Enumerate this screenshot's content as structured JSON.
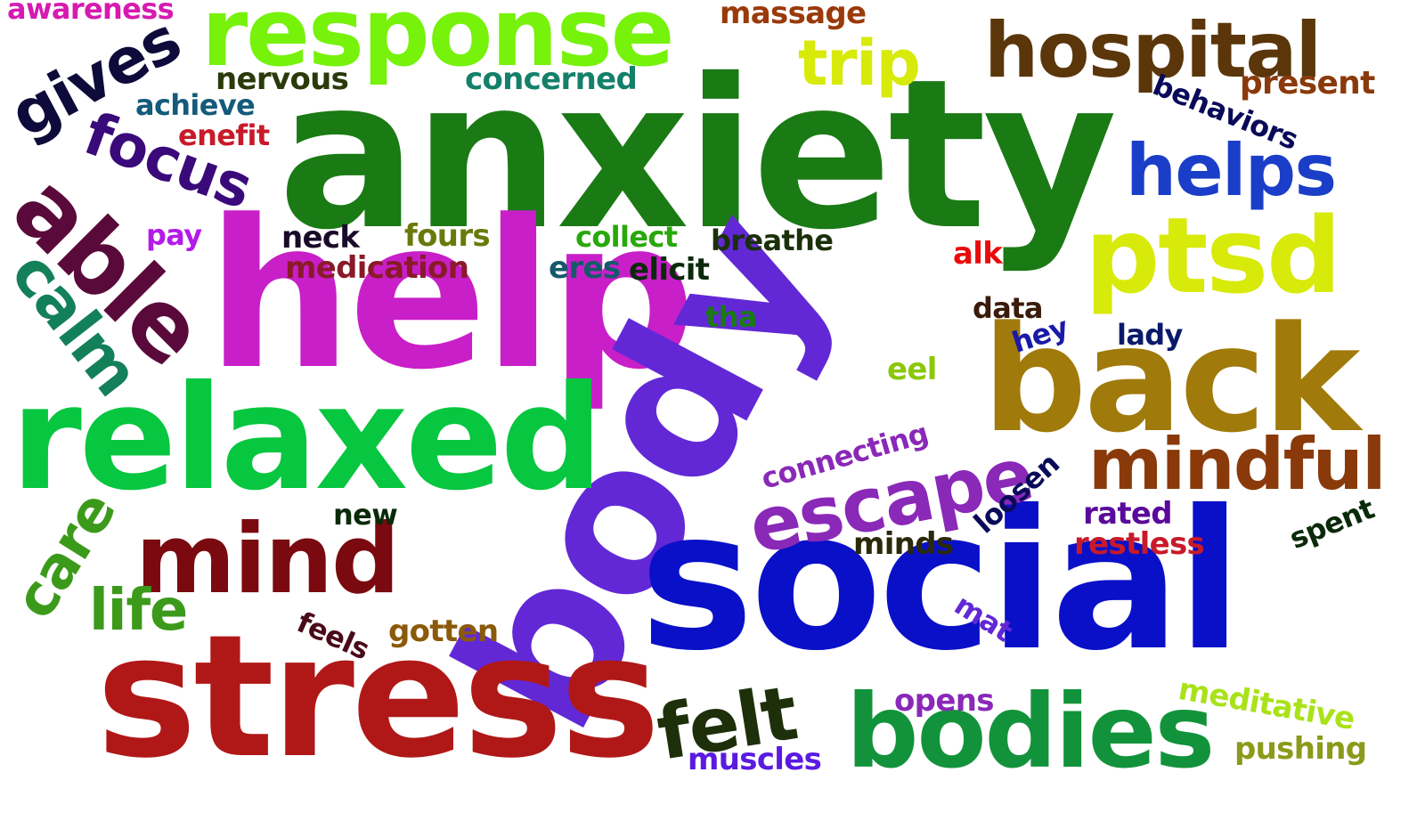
{
  "words": [
    {
      "text": "anxiety",
      "color": "#1a7a14"
    },
    {
      "text": "help",
      "color": "#c81fc8"
    },
    {
      "text": "body",
      "color": "#6228d6"
    },
    {
      "text": "social",
      "color": "#0a10c8"
    },
    {
      "text": "stress",
      "color": "#b01818"
    },
    {
      "text": "relaxed",
      "color": "#07c640"
    },
    {
      "text": "back",
      "color": "#a07a0a"
    },
    {
      "text": "response",
      "color": "#76f20b"
    },
    {
      "text": "bodies",
      "color": "#12933b"
    },
    {
      "text": "ptsd",
      "color": "#d8ea0a"
    },
    {
      "text": "mind",
      "color": "#7a0a10"
    },
    {
      "text": "able",
      "color": "#5a0a3a"
    },
    {
      "text": "hospital",
      "color": "#5a360a"
    },
    {
      "text": "escape",
      "color": "#8a28b8"
    },
    {
      "text": "mindful",
      "color": "#8a3a0a"
    },
    {
      "text": "helps",
      "color": "#1a3ec8"
    },
    {
      "text": "felt",
      "color": "#1e300a"
    },
    {
      "text": "gives",
      "color": "#0e0a3a"
    },
    {
      "text": "focus",
      "color": "#3a0a7a"
    },
    {
      "text": "trip",
      "color": "#d8ea0a"
    },
    {
      "text": "calm",
      "color": "#14805a"
    },
    {
      "text": "care",
      "color": "#3c9a1a"
    },
    {
      "text": "life",
      "color": "#3c9a1a"
    },
    {
      "text": "awareness",
      "color": "#d61ab0"
    },
    {
      "text": "massage",
      "color": "#9a3a0a"
    },
    {
      "text": "nervous",
      "color": "#2a3a0a"
    },
    {
      "text": "concerned",
      "color": "#14806a"
    },
    {
      "text": "present",
      "color": "#8a3a0a"
    },
    {
      "text": "behaviors",
      "color": "#0a0a5a"
    },
    {
      "text": "achieve",
      "color": "#145a7a"
    },
    {
      "text": "enefit",
      "color": "#c81a2a"
    },
    {
      "text": "pay",
      "color": "#b41aea"
    },
    {
      "text": "neck",
      "color": "#1a0a2a"
    },
    {
      "text": "fours",
      "color": "#6a7a0a"
    },
    {
      "text": "collect",
      "color": "#28a80a"
    },
    {
      "text": "breathe",
      "color": "#1a300a"
    },
    {
      "text": "medication",
      "color": "#8a1a2a"
    },
    {
      "text": "eres",
      "color": "#145a6a"
    },
    {
      "text": "elicit",
      "color": "#0a2a0a"
    },
    {
      "text": "alk",
      "color": "#ea0a0a"
    },
    {
      "text": "tha",
      "color": "#1a7a14"
    },
    {
      "text": "data",
      "color": "#3a1a0a"
    },
    {
      "text": "hey",
      "color": "#1a1aa8"
    },
    {
      "text": "lady",
      "color": "#0a1a6a"
    },
    {
      "text": "eel",
      "color": "#8ac80a"
    },
    {
      "text": "connecting",
      "color": "#8a28b8"
    },
    {
      "text": "loosen",
      "color": "#0a0a5a"
    },
    {
      "text": "new",
      "color": "#0a2a0a"
    },
    {
      "text": "minds",
      "color": "#2a2a0a"
    },
    {
      "text": "rated",
      "color": "#5a0a9a"
    },
    {
      "text": "restless",
      "color": "#c81a2a"
    },
    {
      "text": "spent",
      "color": "#0a2a0a"
    },
    {
      "text": "mat",
      "color": "#6228d6"
    },
    {
      "text": "feels",
      "color": "#4a0a1a"
    },
    {
      "text": "gotten",
      "color": "#8a5a0a"
    },
    {
      "text": "opens",
      "color": "#8a28b8"
    },
    {
      "text": "meditative",
      "color": "#aae21a"
    },
    {
      "text": "pushing",
      "color": "#8a9a1a"
    },
    {
      "text": "muscles",
      "color": "#5a1ae2"
    }
  ]
}
